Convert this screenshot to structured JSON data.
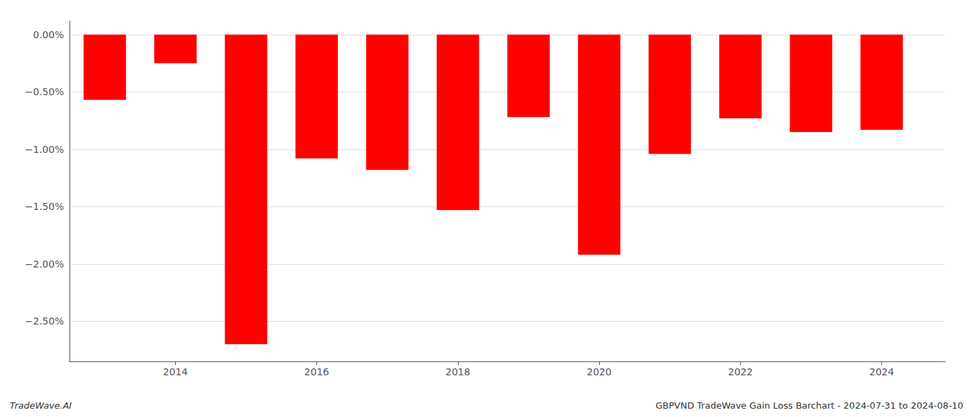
{
  "chart_data": {
    "type": "bar",
    "x": [
      2013,
      2014,
      2015,
      2016,
      2017,
      2018,
      2019,
      2020,
      2021,
      2022,
      2023,
      2024
    ],
    "values": [
      -0.57,
      -0.25,
      -2.7,
      -1.08,
      -1.18,
      -1.53,
      -0.72,
      -1.92,
      -1.04,
      -0.73,
      -0.85,
      -0.83
    ],
    "color": "#ff0000",
    "xlim": [
      2012.5,
      2024.9
    ],
    "xticks": [
      2014,
      2016,
      2018,
      2020,
      2022,
      2024
    ],
    "ylim": [
      -2.85,
      0.12
    ],
    "yticks": [
      {
        "value": 0.0,
        "label": "0.00%"
      },
      {
        "value": -0.5,
        "label": "−0.50%"
      },
      {
        "value": -1.0,
        "label": "−1.00%"
      },
      {
        "value": -1.5,
        "label": "−1.50%"
      },
      {
        "value": -2.0,
        "label": "−2.00%"
      },
      {
        "value": -2.5,
        "label": "−2.50%"
      }
    ],
    "grid": true,
    "annotations": [
      "TradeWave.AI",
      "GBPVND TradeWave Gain Loss Barchart - 2024-07-31 to 2024-08-10"
    ]
  }
}
